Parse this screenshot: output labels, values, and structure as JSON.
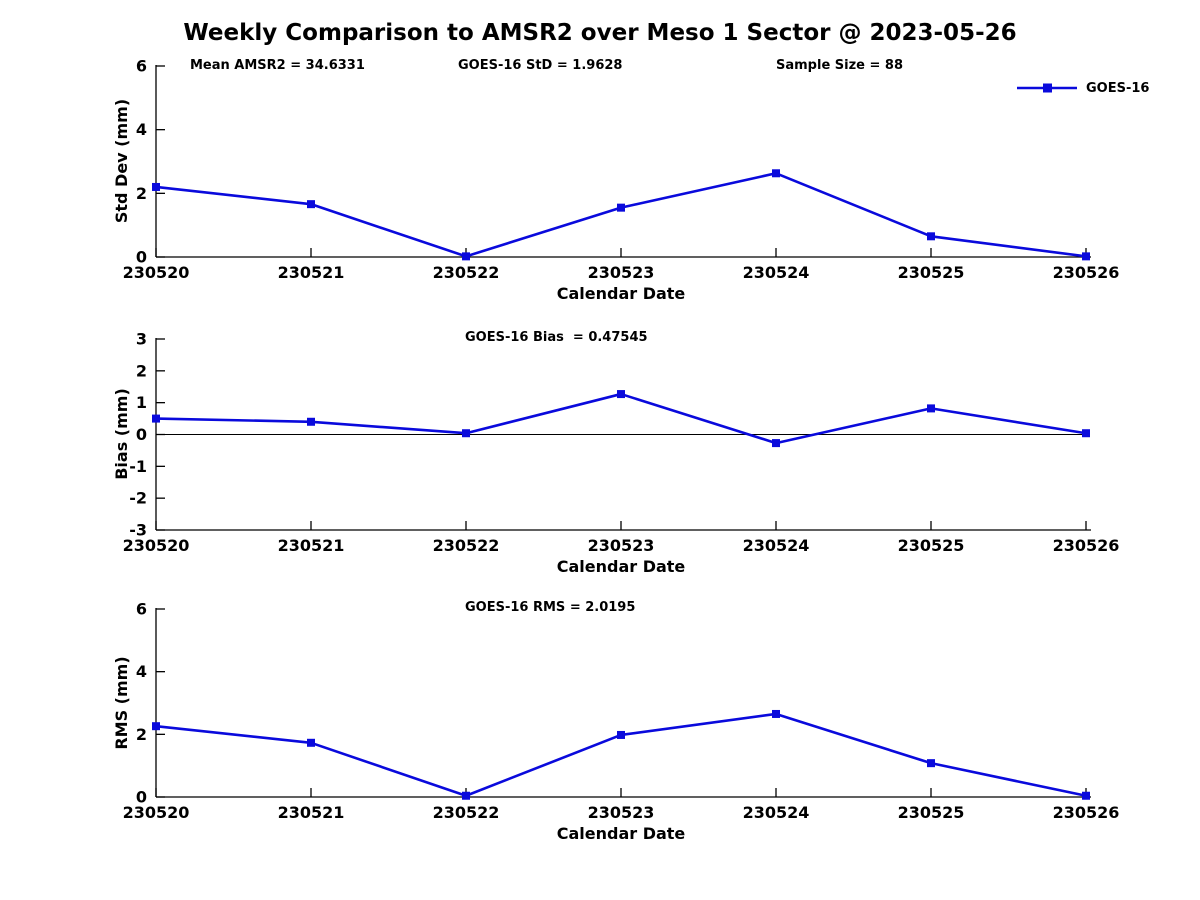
{
  "title": "Weekly Comparison to AMSR2 over Meso 1 Sector @ 2023-05-26",
  "accent_color": "#0A0ADC",
  "legend": {
    "label": "GOES-16",
    "position": "top-right"
  },
  "chart_data": [
    {
      "type": "line",
      "name": "std-dev",
      "annotations": [
        "Mean AMSR2 = 34.6331",
        "GOES-16 StD = 1.9628",
        "Sample Size = 88"
      ],
      "ylabel": "Std Dev (mm)",
      "xlabel": "Calendar Date",
      "ylim": [
        0,
        6
      ],
      "yticks": [
        0,
        2,
        4,
        6
      ],
      "grid": false,
      "categories": [
        "230520",
        "230521",
        "230522",
        "230523",
        "230524",
        "230525",
        "230526"
      ],
      "series": [
        {
          "name": "GOES-16",
          "color": "#0A0ADC",
          "marker": "square",
          "values": [
            2.2,
            1.66,
            0.02,
            1.55,
            2.63,
            0.65,
            0.02
          ]
        }
      ]
    },
    {
      "type": "line",
      "name": "bias",
      "title": "GOES-16 Bias  = 0.47545",
      "ylabel": "Bias (mm)",
      "xlabel": "Calendar Date",
      "ylim": [
        -3,
        3
      ],
      "yticks": [
        -3,
        -2,
        -1,
        0,
        1,
        2,
        3
      ],
      "zero_line": true,
      "grid": false,
      "categories": [
        "230520",
        "230521",
        "230522",
        "230523",
        "230524",
        "230525",
        "230526"
      ],
      "series": [
        {
          "name": "GOES-16",
          "color": "#0A0ADC",
          "marker": "square",
          "values": [
            0.5,
            0.4,
            0.04,
            1.27,
            -0.27,
            0.82,
            0.04
          ]
        }
      ]
    },
    {
      "type": "line",
      "name": "rms",
      "title": "GOES-16 RMS = 2.0195",
      "ylabel": "RMS (mm)",
      "xlabel": "Calendar Date",
      "ylim": [
        0,
        6
      ],
      "yticks": [
        0,
        2,
        4,
        6
      ],
      "grid": false,
      "categories": [
        "230520",
        "230521",
        "230522",
        "230523",
        "230524",
        "230525",
        "230526"
      ],
      "series": [
        {
          "name": "GOES-16",
          "color": "#0A0ADC",
          "marker": "square",
          "values": [
            2.26,
            1.73,
            0.04,
            1.98,
            2.65,
            1.08,
            0.04
          ]
        }
      ]
    }
  ]
}
